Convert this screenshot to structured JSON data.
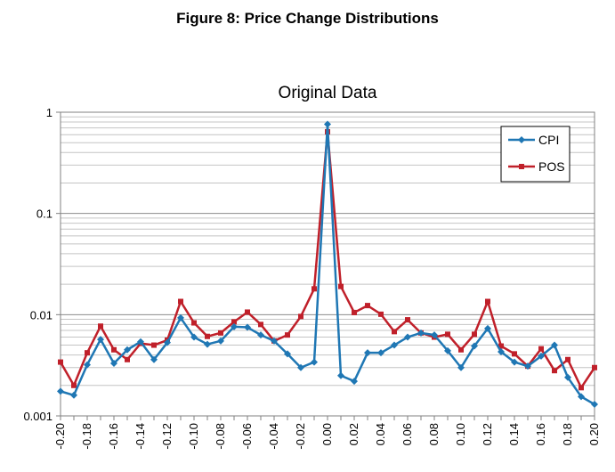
{
  "figure_title": "Figure 8: Price Change Distributions",
  "chart_data": {
    "type": "line",
    "title": "Original Data",
    "xlabel": "",
    "ylabel": "",
    "y_scale": "log",
    "ylim": [
      0.001,
      1
    ],
    "y_ticks": [
      0.001,
      0.01,
      0.1,
      1
    ],
    "y_tick_labels": [
      "0.001",
      "0.01",
      "0.1",
      "1"
    ],
    "categories": [
      "-0.20",
      "-0.19",
      "-0.18",
      "-0.17",
      "-0.16",
      "-0.15",
      "-0.14",
      "-0.13",
      "-0.12",
      "-0.11",
      "-0.10",
      "-0.09",
      "-0.08",
      "-0.07",
      "-0.06",
      "-0.05",
      "-0.04",
      "-0.03",
      "-0.02",
      "-0.01",
      "0.00",
      "0.01",
      "0.02",
      "0.03",
      "0.04",
      "0.05",
      "0.06",
      "0.07",
      "0.08",
      "0.09",
      "0.10",
      "0.11",
      "0.12",
      "0.13",
      "0.14",
      "0.15",
      "0.16",
      "0.17",
      "0.18",
      "0.19",
      "0.20"
    ],
    "tick_labels": [
      "-0.20",
      "-0.18",
      "-0.16",
      "-0.14",
      "-0.12",
      "-0.10",
      "-0.08",
      "-0.06",
      "-0.04",
      "-0.02",
      "0.00",
      "0.02",
      "0.04",
      "0.06",
      "0.08",
      "0.10",
      "0.12",
      "0.14",
      "0.16",
      "0.18",
      "0.20"
    ],
    "grid": true,
    "legend_position": "top-right",
    "series": [
      {
        "name": "CPI",
        "color": "#1f77b4",
        "marker": "diamond",
        "values": [
          0.00175,
          0.0016,
          0.0032,
          0.0057,
          0.0033,
          0.0045,
          0.0054,
          0.0036,
          0.0053,
          0.0093,
          0.006,
          0.0051,
          0.0055,
          0.0076,
          0.0075,
          0.0063,
          0.0055,
          0.0041,
          0.003,
          0.0034,
          0.76,
          0.0025,
          0.0022,
          0.0042,
          0.0042,
          0.005,
          0.006,
          0.0066,
          0.0063,
          0.0044,
          0.003,
          0.0049,
          0.0073,
          0.0043,
          0.0034,
          0.0031,
          0.0039,
          0.005,
          0.0024,
          0.00155,
          0.0013
        ]
      },
      {
        "name": "POS",
        "color": "#c0202a",
        "marker": "square",
        "values": [
          0.0034,
          0.002,
          0.0042,
          0.0077,
          0.0045,
          0.0036,
          0.0052,
          0.005,
          0.0056,
          0.0135,
          0.0083,
          0.0061,
          0.0066,
          0.0085,
          0.0106,
          0.008,
          0.0055,
          0.0063,
          0.0096,
          0.018,
          0.64,
          0.019,
          0.0105,
          0.0123,
          0.0101,
          0.0068,
          0.0089,
          0.0066,
          0.006,
          0.0064,
          0.0045,
          0.0064,
          0.0135,
          0.0049,
          0.0041,
          0.0031,
          0.0046,
          0.0028,
          0.0036,
          0.0019,
          0.003
        ]
      }
    ]
  }
}
